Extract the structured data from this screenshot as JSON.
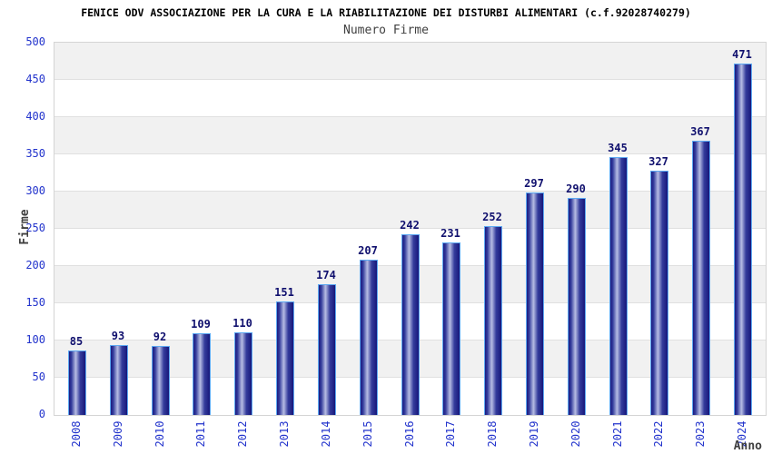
{
  "chart_data": {
    "type": "bar",
    "title": "FENICE ODV ASSOCIAZIONE PER LA CURA E LA RIABILITAZIONE DEI DISTURBI ALIMENTARI (c.f.92028740279)",
    "subtitle": "Numero Firme",
    "categories": [
      "2008",
      "2009",
      "2010",
      "2011",
      "2012",
      "2013",
      "2014",
      "2015",
      "2016",
      "2017",
      "2018",
      "2019",
      "2020",
      "2021",
      "2022",
      "2023",
      "2024"
    ],
    "values": [
      85,
      93,
      92,
      109,
      110,
      151,
      174,
      207,
      242,
      231,
      252,
      297,
      290,
      345,
      327,
      367,
      471
    ],
    "xlabel": "Anno",
    "ylabel": "Firme",
    "ylim": [
      0,
      500
    ],
    "y_tick_step": 50,
    "y_tick_labels": [
      "0",
      "50",
      "100",
      "150",
      "200",
      "250",
      "300",
      "350",
      "400",
      "450",
      "500"
    ],
    "grid": "alternating-horizontal-bands",
    "legend": "none",
    "value_labels_shown": true,
    "colors": {
      "title_color": "#000000",
      "subtitle_color": "#3f3f3f",
      "axis_label": "#2233cc",
      "axis_title_color": "#3f3f3f",
      "value_label": "#10106e",
      "bar_outline": "#5da9f2",
      "bar_gradient": [
        "#1b1b80",
        "#343c9c",
        "#b7bde4",
        "#343c9c",
        "#17177a"
      ],
      "band_gray": "#f1f1f1",
      "band_white": "#ffffff",
      "grid_line": "#e0e0e0",
      "plot_border": "#d4d4d4"
    }
  }
}
